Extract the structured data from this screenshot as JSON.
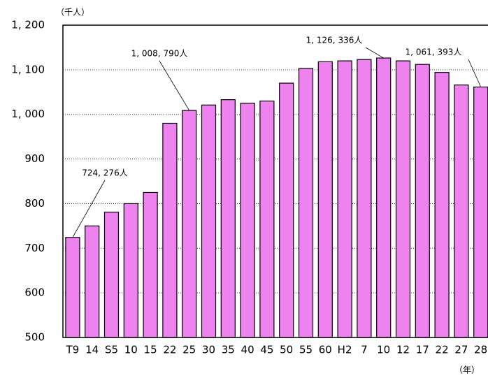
{
  "chart_data": {
    "type": "bar",
    "y_label": "（千人）",
    "x_label": "（年）",
    "categories": [
      "T9",
      "14",
      "S5",
      "10",
      "15",
      "22",
      "25",
      "30",
      "35",
      "40",
      "45",
      "50",
      "55",
      "60",
      "H2",
      "7",
      "10",
      "12",
      "17",
      "22",
      "27",
      "28"
    ],
    "values": [
      724.276,
      750,
      781,
      800,
      825,
      980,
      1008.79,
      1021,
      1033,
      1025,
      1030,
      1070,
      1103,
      1118,
      1120,
      1123,
      1126.336,
      1120,
      1112,
      1094,
      1066,
      1061.393
    ],
    "value_labels": [
      "724, 276人",
      null,
      null,
      null,
      null,
      null,
      "1, 008, 790人",
      null,
      null,
      null,
      null,
      null,
      null,
      null,
      null,
      null,
      "1, 126, 336人",
      null,
      null,
      null,
      null,
      "1, 061, 393人"
    ],
    "color": "#ee82ee",
    "ylim": [
      500,
      1200
    ],
    "yticks": [
      500,
      600,
      700,
      800,
      900,
      {
        "value": 1000,
        "label": "1, 000"
      },
      {
        "value": 1100,
        "label": "1, 100"
      },
      {
        "value": 1200,
        "label": "1, 200"
      }
    ],
    "grid": true
  }
}
